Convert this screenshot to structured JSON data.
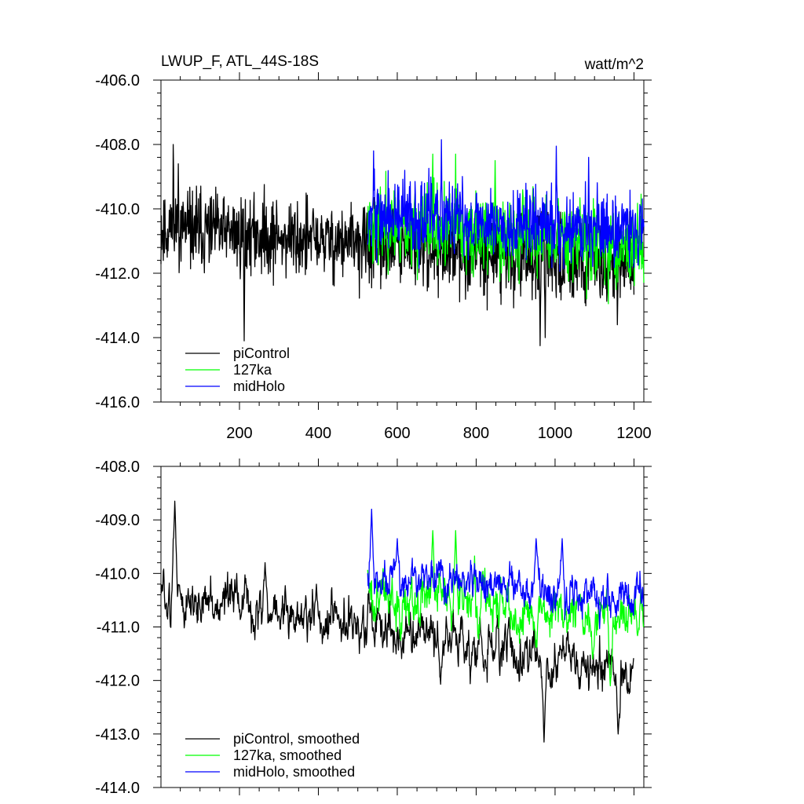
{
  "figure": {
    "title_left": "LWUP_F, ATL_44S-18S",
    "title_right": "watt/m^2"
  },
  "chart_data": [
    {
      "type": "line",
      "panel": "top",
      "title": "LWUP_F, ATL_44S-18S",
      "units": "watt/m^2",
      "xlim": [
        1,
        1225
      ],
      "ylim": [
        -416,
        -406
      ],
      "yticks": [
        -406,
        -408,
        -410,
        -412,
        -414,
        -416
      ],
      "ytick_labels": [
        "-406.0",
        "-408.0",
        "-410.0",
        "-412.0",
        "-414.0",
        "-416.0"
      ],
      "xticks": [
        200,
        400,
        600,
        800,
        1000,
        1200
      ],
      "xtick_labels": [
        "200",
        "400",
        "600",
        "800",
        "1000",
        "1200"
      ],
      "legend_position": "bottom-left",
      "series": [
        {
          "name": "piControl",
          "color": "#000000",
          "x_start": 1,
          "x_end": 1200,
          "mean": -410.6,
          "trend_end": -411.75,
          "noise": 0.62,
          "seed": 11,
          "peaks": [
            [
              32,
              -408.0
            ],
            [
              45,
              -408.6
            ],
            [
              212,
              -414.1
            ],
            [
              962,
              -414.25
            ],
            [
              975,
              -414.0
            ],
            [
              1158,
              -413.6
            ]
          ]
        },
        {
          "name": "127ka",
          "color": "#00ff00",
          "x_start": 525,
          "x_end": 1225,
          "mean": -410.45,
          "trend_end": -411.1,
          "noise": 0.62,
          "seed": 23,
          "peaks": [
            [
              690,
              -408.3
            ],
            [
              748,
              -408.3
            ],
            [
              848,
              -408.5
            ],
            [
              1135,
              -412.95
            ],
            [
              1080,
              -412.8
            ]
          ]
        },
        {
          "name": "midHolo",
          "color": "#0000ff",
          "x_start": 525,
          "x_end": 1225,
          "mean": -410.2,
          "trend_end": -410.65,
          "noise": 0.58,
          "seed": 37,
          "peaks": [
            [
              540,
              -408.2
            ],
            [
              712,
              -407.85
            ],
            [
              1003,
              -408.05
            ],
            [
              1085,
              -408.4
            ]
          ]
        }
      ]
    },
    {
      "type": "line",
      "panel": "bottom",
      "title": "",
      "xlim": [
        1,
        1225
      ],
      "ylim": [
        -414,
        -408
      ],
      "yticks": [
        -408,
        -409,
        -410,
        -411,
        -412,
        -413,
        -414
      ],
      "ytick_labels": [
        "-408.0",
        "-409.0",
        "-410.0",
        "-411.0",
        "-412.0",
        "-413.0",
        "-414.0"
      ],
      "xticks": [
        200,
        400,
        600,
        800,
        1000,
        1200
      ],
      "legend_position": "bottom-left",
      "series": [
        {
          "name": "piControl, smoothed",
          "color": "#000000",
          "x_start": 1,
          "x_end": 1200,
          "mean": -410.4,
          "trend_end": -411.85,
          "noise": 0.34,
          "seed": 51,
          "peaks": [
            [
              36,
              -408.65
            ],
            [
              265,
              -409.8
            ],
            [
              395,
              -410.2
            ],
            [
              972,
              -413.15
            ],
            [
              1160,
              -413.0
            ],
            [
              1200,
              -411.6
            ]
          ]
        },
        {
          "name": "127ka, smoothed",
          "color": "#00ff00",
          "x_start": 525,
          "x_end": 1225,
          "mean": -410.3,
          "trend_end": -410.9,
          "noise": 0.36,
          "seed": 63,
          "peaks": [
            [
              690,
              -409.2
            ],
            [
              748,
              -409.2
            ],
            [
              1140,
              -412.1
            ],
            [
              1095,
              -411.6
            ]
          ]
        },
        {
          "name": "midHolo, smoothed",
          "color": "#0000ff",
          "x_start": 525,
          "x_end": 1225,
          "mean": -410.05,
          "trend_end": -410.45,
          "noise": 0.3,
          "seed": 79,
          "peaks": [
            [
              535,
              -408.8
            ],
            [
              600,
              -409.35
            ],
            [
              952,
              -409.35
            ],
            [
              1018,
              -409.35
            ]
          ]
        }
      ]
    }
  ]
}
